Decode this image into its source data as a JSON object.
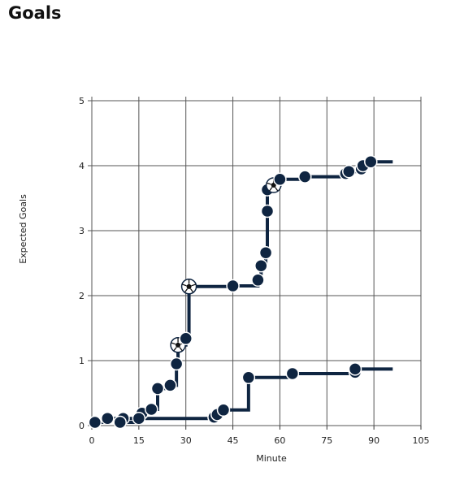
{
  "page": {
    "title": "Goals"
  },
  "chart_data": {
    "type": "line",
    "title": "Goals",
    "xlabel": "Minute",
    "ylabel": "Expected Goals",
    "xlim": [
      0,
      105
    ],
    "ylim": [
      0,
      5
    ],
    "x_ticks": [
      "0",
      "15",
      "30",
      "45",
      "60",
      "75",
      "90",
      "105"
    ],
    "y_ticks": [
      "0",
      "1",
      "2",
      "3",
      "4",
      "5"
    ],
    "grid": true,
    "line_color": "#0f2541",
    "series": [
      {
        "line_end": 96,
        "points": [
          {
            "x": 1,
            "y": 0.05
          },
          {
            "x": 5,
            "y": 0.11
          },
          {
            "x": 10,
            "y": 0.11
          },
          {
            "x": 16,
            "y": 0.19
          },
          {
            "x": 19,
            "y": 0.25
          },
          {
            "x": 21,
            "y": 0.57
          },
          {
            "x": 25,
            "y": 0.62
          },
          {
            "x": 27,
            "y": 0.95
          },
          {
            "x": 27.5,
            "y": 1.24,
            "goal": true
          },
          {
            "x": 30,
            "y": 1.34
          },
          {
            "x": 31,
            "y": 2.14,
            "goal": true
          },
          {
            "x": 45,
            "y": 2.15
          },
          {
            "x": 53,
            "y": 2.24
          },
          {
            "x": 54,
            "y": 2.46
          },
          {
            "x": 55.5,
            "y": 2.66
          },
          {
            "x": 56,
            "y": 3.3
          },
          {
            "x": 56,
            "y": 3.63
          },
          {
            "x": 58,
            "y": 3.7,
            "goal": true
          },
          {
            "x": 60,
            "y": 3.79
          },
          {
            "x": 68,
            "y": 3.83
          },
          {
            "x": 81,
            "y": 3.88
          },
          {
            "x": 82,
            "y": 3.91
          },
          {
            "x": 86,
            "y": 3.95
          },
          {
            "x": 86.5,
            "y": 4.0
          },
          {
            "x": 89,
            "y": 4.06
          }
        ]
      },
      {
        "line_end": 96,
        "points": [
          {
            "x": 9,
            "y": 0.05
          },
          {
            "x": 15,
            "y": 0.11
          },
          {
            "x": 39,
            "y": 0.13
          },
          {
            "x": 40,
            "y": 0.17
          },
          {
            "x": 42,
            "y": 0.24
          },
          {
            "x": 50,
            "y": 0.74
          },
          {
            "x": 64,
            "y": 0.8
          },
          {
            "x": 84,
            "y": 0.82
          },
          {
            "x": 84,
            "y": 0.87
          }
        ]
      }
    ]
  }
}
